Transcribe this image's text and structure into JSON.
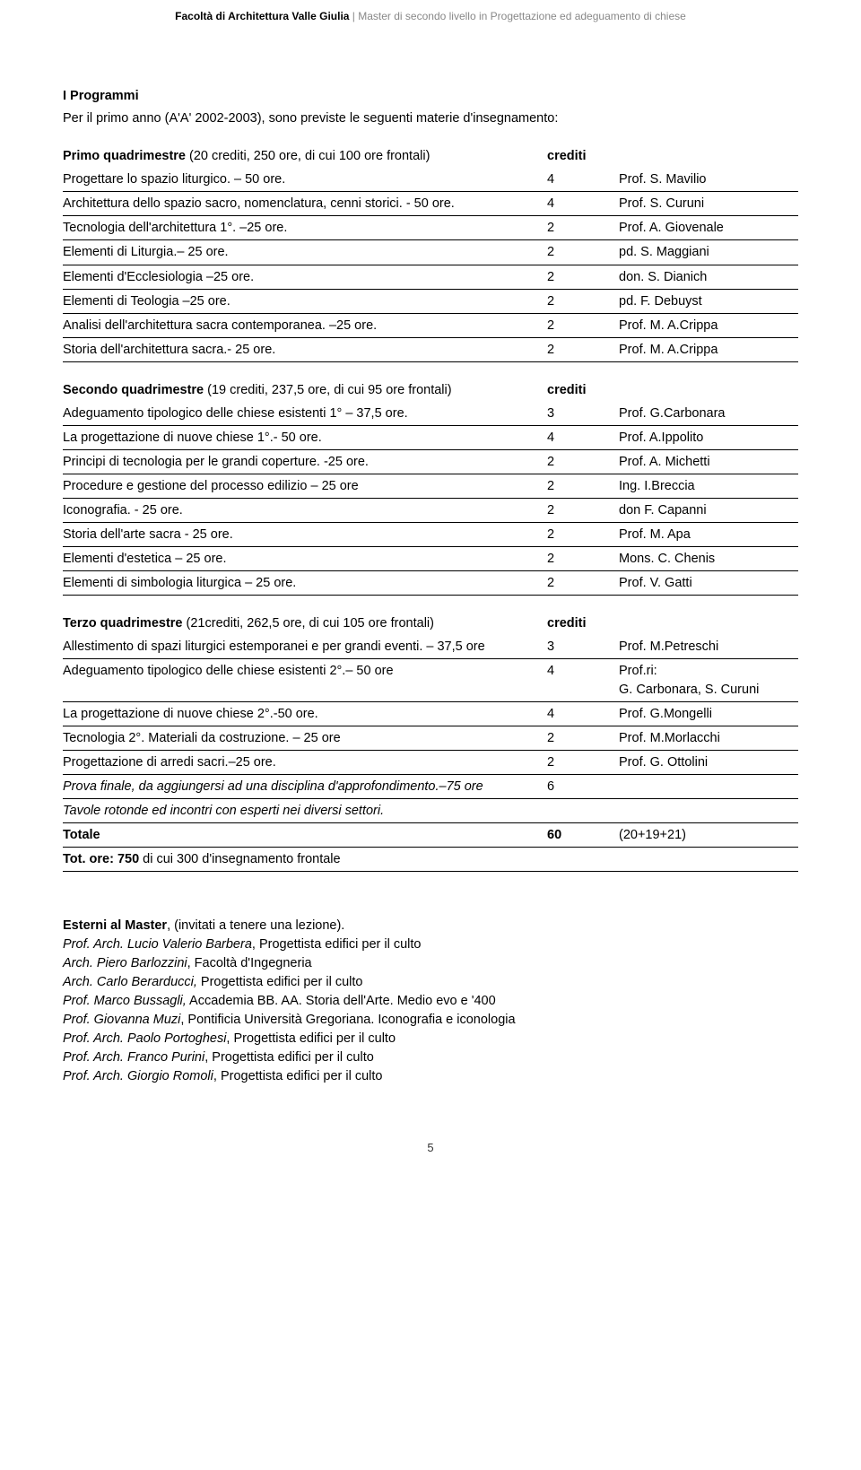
{
  "header": {
    "bold": "Facoltà di Architettura Valle Giulia",
    "light": " | Master di secondo livello in Progettazione ed adeguamento di chiese"
  },
  "intro": {
    "title": "I Programmi",
    "text": "Per il primo anno (A'A' 2002-2003), sono previste le seguenti materie d'insegnamento:"
  },
  "q1": {
    "head_course": "Primo quadrimestre",
    "head_detail": " (20 crediti, 250 ore, di cui 100 ore frontali)",
    "head_credits": "crediti",
    "rows": [
      {
        "course": "Progettare lo spazio liturgico. – 50 ore.",
        "credits": "4",
        "teacher": "Prof. S. Mavilio"
      },
      {
        "course": "Architettura dello spazio sacro, nomenclatura, cenni storici. - 50 ore.",
        "credits": "4",
        "teacher": "Prof. S. Curuni"
      },
      {
        "course": "Tecnologia dell'architettura 1°. –25 ore.",
        "credits": "2",
        "teacher": "Prof. A. Giovenale"
      },
      {
        "course": "Elementi di Liturgia.– 25 ore.",
        "credits": "2",
        "teacher": "pd. S. Maggiani"
      },
      {
        "course": "Elementi d'Ecclesiologia –25 ore.",
        "credits": "2",
        "teacher": "don. S. Dianich"
      },
      {
        "course": "Elementi di Teologia –25 ore.",
        "credits": "2",
        "teacher": "pd. F. Debuyst"
      },
      {
        "course": "Analisi dell'architettura sacra contemporanea. –25 ore.",
        "credits": "2",
        "teacher": "Prof. M. A.Crippa"
      },
      {
        "course": "Storia dell'architettura sacra.- 25 ore.",
        "credits": "2",
        "teacher": "Prof. M. A.Crippa"
      }
    ]
  },
  "q2": {
    "head_course": "Secondo quadrimestre",
    "head_detail": " (19 crediti, 237,5 ore, di cui 95 ore frontali)",
    "head_credits": "crediti",
    "rows": [
      {
        "course": "Adeguamento tipologico delle chiese esistenti 1° – 37,5 ore.",
        "credits": "3",
        "teacher": "Prof. G.Carbonara"
      },
      {
        "course": "La progettazione di nuove chiese 1°.- 50 ore.",
        "credits": "4",
        "teacher": "Prof. A.Ippolito"
      },
      {
        "course": "Principi di tecnologia per le grandi coperture. -25 ore.",
        "credits": "2",
        "teacher": "Prof. A. Michetti"
      },
      {
        "course": "Procedure e gestione del processo edilizio – 25 ore",
        "credits": "2",
        "teacher": "Ing. I.Breccia"
      },
      {
        "course": "Iconografia. - 25 ore.",
        "credits": "2",
        "teacher": "don F. Capanni"
      },
      {
        "course": "Storia dell'arte sacra - 25 ore.",
        "credits": "2",
        "teacher": "Prof. M. Apa"
      },
      {
        "course": "Elementi d'estetica  – 25 ore.",
        "credits": "2",
        "teacher": "Mons. C. Chenis"
      },
      {
        "course": "Elementi di simbologia liturgica  – 25 ore.",
        "credits": "2",
        "teacher": "Prof. V. Gatti"
      }
    ]
  },
  "q3": {
    "head_course": "Terzo quadrimestre",
    "head_detail": "  (21crediti, 262,5 ore, di cui 105 ore frontali)",
    "head_credits": "crediti",
    "rows": [
      {
        "course": "Allestimento  di spazi liturgici estemporanei e per grandi eventi. – 37,5 ore",
        "credits": "3",
        "teacher": "Prof. M.Petreschi"
      },
      {
        "course": "Adeguamento tipologico delle chiese esistenti 2°.– 50 ore",
        "credits": "4",
        "teacher": "Prof.ri:\nG. Carbonara, S. Curuni"
      },
      {
        "course": "La progettazione di nuove chiese 2°.-50 ore.",
        "credits": "4",
        "teacher": "Prof. G.Mongelli"
      },
      {
        "course": "Tecnologia 2°. Materiali da costruzione. – 25 ore",
        "credits": "2",
        "teacher": "Prof. M.Morlacchi"
      },
      {
        "course": "Progettazione di arredi sacri.–25 ore.",
        "credits": "2",
        "teacher": "Prof. G. Ottolini"
      },
      {
        "course": "Prova finale, da aggiungersi ad una disciplina d'approfondimento.–75 ore",
        "credits": "6",
        "teacher": "",
        "italic": true
      },
      {
        "course": "Tavole rotonde ed incontri con esperti nei diversi settori.",
        "credits": "",
        "teacher": "",
        "italic": true
      }
    ],
    "totale": {
      "label": "Totale",
      "credits": "60",
      "teacher": "(20+19+21)"
    },
    "totore": "Tot. ore: 750",
    "totore_rest": " di cui 300 d'insegnamento frontale"
  },
  "ext": {
    "title_bold": "Esterni al Master",
    "title_rest": ", (invitati a tenere una lezione).",
    "lines": [
      {
        "it": "Prof. Arch. Lucio Valerio Barbera",
        "rest": ", Progettista edifici per il culto"
      },
      {
        "it": "Arch. Piero Barlozzini",
        "rest": ", Facoltà d'Ingegneria"
      },
      {
        "it": "Arch. Carlo Berarducci,",
        "rest": " Progettista edifici per il culto"
      },
      {
        "it": "Prof. Marco Bussagli,",
        "rest": " Accademia BB. AA. Storia dell'Arte. Medio evo e '400"
      },
      {
        "it": "Prof. Giovanna Muzi",
        "rest": ", Pontificia Università Gregoriana. Iconografia e iconologia"
      },
      {
        "it": "Prof. Arch. Paolo Portoghesi",
        "rest": ", Progettista edifici per il culto"
      },
      {
        "it": "Prof. Arch. Franco Purini",
        "rest": ", Progettista edifici per il culto"
      },
      {
        "it": "Prof. Arch. Giorgio Romoli",
        "rest": ", Progettista edifici per il culto"
      }
    ]
  },
  "pagenum": "5"
}
